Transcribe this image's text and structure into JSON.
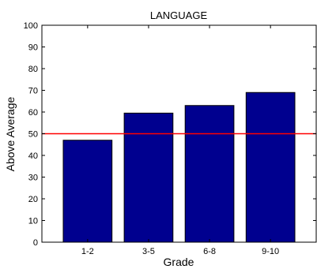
{
  "chart_data": {
    "type": "bar",
    "title": "LANGUAGE",
    "xlabel": "Grade",
    "ylabel": "Above Average",
    "categories": [
      "1-2",
      "3-5",
      "6-8",
      "9-10"
    ],
    "values": [
      47,
      59.5,
      63,
      69
    ],
    "ylim": [
      0,
      100
    ],
    "yticks": [
      0,
      10,
      20,
      30,
      40,
      50,
      60,
      70,
      80,
      90,
      100
    ],
    "reference_line": 50,
    "grid": false,
    "colors": {
      "bar_fill": "#00008f",
      "bar_edge": "#000000",
      "reference_line": "#ff0000",
      "axis": "#000000"
    }
  }
}
